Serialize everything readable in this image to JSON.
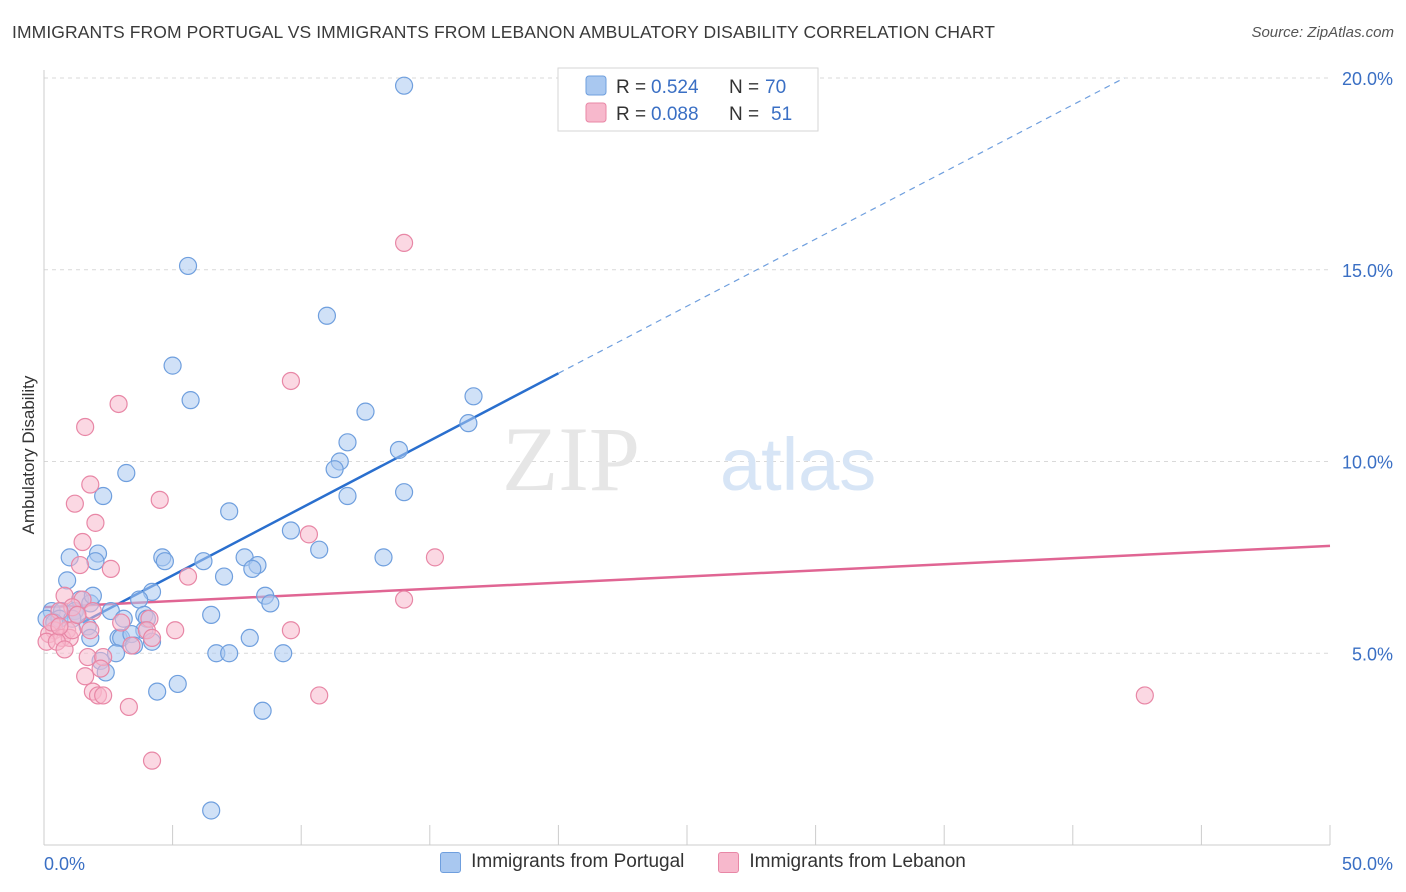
{
  "title": "IMMIGRANTS FROM PORTUGAL VS IMMIGRANTS FROM LEBANON AMBULATORY DISABILITY CORRELATION CHART",
  "source": "Source: ZipAtlas.com",
  "watermark": {
    "zip": "ZIP",
    "atlas": "atlas"
  },
  "colors": {
    "blue_fill": "#a9c8f0",
    "blue_stroke": "#6f9fde",
    "blue_line": "#2a6fce",
    "pink_fill": "#f7b8cc",
    "pink_stroke": "#e887a6",
    "pink_line": "#e06593",
    "tick_text": "#3a6fc4",
    "grid": "#d9d9d9"
  },
  "legend_top": {
    "rows": [
      {
        "r_label": "R =",
        "r_value": "0.524",
        "n_label": "N =",
        "n_value": "70"
      },
      {
        "r_label": "R =",
        "r_value": "0.088",
        "n_label": "N =",
        "n_value": "51"
      }
    ]
  },
  "legend_bottom": {
    "items": [
      "Immigrants from Portugal",
      "Immigrants from Lebanon"
    ]
  },
  "chart_data": {
    "type": "scatter",
    "title": "IMMIGRANTS FROM PORTUGAL VS IMMIGRANTS FROM LEBANON AMBULATORY DISABILITY CORRELATION CHART",
    "xlabel": "",
    "ylabel": "Ambulatory Disability",
    "xlim": [
      0,
      50
    ],
    "ylim": [
      0,
      20
    ],
    "x_tick_labels": [
      "0.0%",
      "50.0%"
    ],
    "y_ticks": [
      5,
      10,
      15,
      20
    ],
    "y_tick_labels": [
      "5.0%",
      "10.0%",
      "15.0%",
      "20.0%"
    ],
    "grid": "horizontal dashed",
    "legend_position": "top-center",
    "series": [
      {
        "name": "Immigrants from Portugal",
        "color": "#6f9fde",
        "points": [
          [
            14.0,
            19.8
          ],
          [
            5.6,
            15.1
          ],
          [
            11.0,
            13.8
          ],
          [
            5.0,
            12.5
          ],
          [
            5.7,
            11.6
          ],
          [
            16.7,
            11.7
          ],
          [
            12.5,
            11.3
          ],
          [
            16.5,
            11.0
          ],
          [
            11.8,
            10.5
          ],
          [
            13.8,
            10.3
          ],
          [
            11.5,
            10.0
          ],
          [
            11.3,
            9.8
          ],
          [
            3.2,
            9.7
          ],
          [
            2.3,
            9.1
          ],
          [
            11.8,
            9.1
          ],
          [
            14.0,
            9.2
          ],
          [
            7.2,
            8.7
          ],
          [
            9.6,
            8.2
          ],
          [
            1.0,
            7.5
          ],
          [
            2.1,
            7.6
          ],
          [
            10.7,
            7.7
          ],
          [
            4.6,
            7.5
          ],
          [
            4.7,
            7.4
          ],
          [
            6.2,
            7.4
          ],
          [
            13.2,
            7.5
          ],
          [
            2.0,
            7.4
          ],
          [
            7.8,
            7.5
          ],
          [
            8.3,
            7.3
          ],
          [
            8.1,
            7.2
          ],
          [
            0.9,
            6.9
          ],
          [
            7.0,
            7.0
          ],
          [
            1.4,
            6.4
          ],
          [
            1.8,
            6.3
          ],
          [
            4.2,
            6.6
          ],
          [
            1.9,
            6.5
          ],
          [
            8.6,
            6.5
          ],
          [
            8.8,
            6.3
          ],
          [
            3.7,
            6.4
          ],
          [
            0.3,
            6.1
          ],
          [
            0.7,
            6.1
          ],
          [
            1.2,
            6.1
          ],
          [
            2.6,
            6.1
          ],
          [
            0.1,
            5.9
          ],
          [
            0.6,
            5.9
          ],
          [
            1.3,
            6.0
          ],
          [
            3.1,
            5.9
          ],
          [
            3.9,
            6.0
          ],
          [
            4.0,
            5.9
          ],
          [
            6.5,
            6.0
          ],
          [
            1.7,
            5.7
          ],
          [
            3.9,
            5.6
          ],
          [
            1.8,
            5.4
          ],
          [
            2.9,
            5.4
          ],
          [
            3.0,
            5.4
          ],
          [
            3.4,
            5.5
          ],
          [
            4.2,
            5.3
          ],
          [
            8.0,
            5.4
          ],
          [
            3.5,
            5.2
          ],
          [
            2.8,
            5.0
          ],
          [
            6.7,
            5.0
          ],
          [
            7.2,
            5.0
          ],
          [
            9.3,
            5.0
          ],
          [
            2.2,
            4.8
          ],
          [
            2.4,
            4.5
          ],
          [
            5.2,
            4.2
          ],
          [
            4.4,
            4.0
          ],
          [
            8.5,
            3.5
          ],
          [
            6.5,
            0.9
          ],
          [
            0.4,
            5.8
          ],
          [
            1.1,
            5.9
          ]
        ]
      },
      {
        "name": "Immigrants from Lebanon",
        "color": "#e887a6",
        "points": [
          [
            14.0,
            15.7
          ],
          [
            9.6,
            12.1
          ],
          [
            2.9,
            11.5
          ],
          [
            1.6,
            10.9
          ],
          [
            1.8,
            9.4
          ],
          [
            1.2,
            8.9
          ],
          [
            4.5,
            9.0
          ],
          [
            2.0,
            8.4
          ],
          [
            10.3,
            8.1
          ],
          [
            1.5,
            7.9
          ],
          [
            1.4,
            7.3
          ],
          [
            2.6,
            7.2
          ],
          [
            15.2,
            7.5
          ],
          [
            5.6,
            7.0
          ],
          [
            0.8,
            6.5
          ],
          [
            1.5,
            6.4
          ],
          [
            1.1,
            6.2
          ],
          [
            14.0,
            6.4
          ],
          [
            0.6,
            6.1
          ],
          [
            1.9,
            6.1
          ],
          [
            3.0,
            5.8
          ],
          [
            4.1,
            5.9
          ],
          [
            0.4,
            5.6
          ],
          [
            0.9,
            5.6
          ],
          [
            1.8,
            5.6
          ],
          [
            4.0,
            5.6
          ],
          [
            4.2,
            5.4
          ],
          [
            5.1,
            5.6
          ],
          [
            9.6,
            5.6
          ],
          [
            0.2,
            5.5
          ],
          [
            0.7,
            5.4
          ],
          [
            1.0,
            5.4
          ],
          [
            1.1,
            5.6
          ],
          [
            0.1,
            5.3
          ],
          [
            0.5,
            5.3
          ],
          [
            0.8,
            5.1
          ],
          [
            3.4,
            5.2
          ],
          [
            1.7,
            4.9
          ],
          [
            2.3,
            4.9
          ],
          [
            2.2,
            4.6
          ],
          [
            1.6,
            4.4
          ],
          [
            1.9,
            4.0
          ],
          [
            2.1,
            3.9
          ],
          [
            2.3,
            3.9
          ],
          [
            10.7,
            3.9
          ],
          [
            42.8,
            3.9
          ],
          [
            3.3,
            3.6
          ],
          [
            4.2,
            2.2
          ],
          [
            0.3,
            5.8
          ],
          [
            0.6,
            5.7
          ],
          [
            1.3,
            6.0
          ]
        ]
      }
    ],
    "trendlines": [
      {
        "series": "Immigrants from Portugal",
        "x": [
          1.5,
          20.0
        ],
        "y": [
          5.8,
          12.3
        ],
        "dashed_extension_to": [
          42.0,
          20.0
        ]
      },
      {
        "series": "Immigrants from Lebanon",
        "x": [
          0.0,
          50.0
        ],
        "y": [
          6.2,
          7.8
        ]
      }
    ]
  }
}
